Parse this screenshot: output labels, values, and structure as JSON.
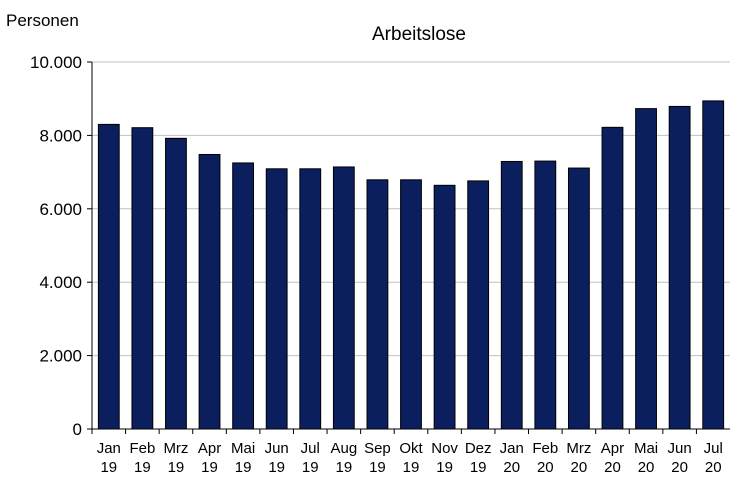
{
  "chart_data": {
    "type": "bar",
    "title": "Arbeitslose",
    "ylabel": "Personen",
    "xlabel": "",
    "ylim": [
      0,
      10000
    ],
    "yticks": [
      {
        "value": 0,
        "label": "0"
      },
      {
        "value": 2000,
        "label": "2.000"
      },
      {
        "value": 4000,
        "label": "4.000"
      },
      {
        "value": 6000,
        "label": "6.000"
      },
      {
        "value": 8000,
        "label": "8.000"
      },
      {
        "value": 10000,
        "label": "10.000"
      }
    ],
    "grid": true,
    "legend": "none",
    "bar_color": "#0b1f5e",
    "categories": [
      {
        "month": "Jan",
        "year": "19"
      },
      {
        "month": "Feb",
        "year": "19"
      },
      {
        "month": "Mrz",
        "year": "19"
      },
      {
        "month": "Apr",
        "year": "19"
      },
      {
        "month": "Mai",
        "year": "19"
      },
      {
        "month": "Jun",
        "year": "19"
      },
      {
        "month": "Jul",
        "year": "19"
      },
      {
        "month": "Aug",
        "year": "19"
      },
      {
        "month": "Sep",
        "year": "19"
      },
      {
        "month": "Okt",
        "year": "19"
      },
      {
        "month": "Nov",
        "year": "19"
      },
      {
        "month": "Dez",
        "year": "19"
      },
      {
        "month": "Jan",
        "year": "20"
      },
      {
        "month": "Feb",
        "year": "20"
      },
      {
        "month": "Mrz",
        "year": "20"
      },
      {
        "month": "Apr",
        "year": "20"
      },
      {
        "month": "Mai",
        "year": "20"
      },
      {
        "month": "Jun",
        "year": "20"
      },
      {
        "month": "Jul",
        "year": "20"
      }
    ],
    "values": [
      8300,
      8210,
      7920,
      7480,
      7250,
      7090,
      7090,
      7140,
      6790,
      6790,
      6640,
      6760,
      7290,
      7300,
      7110,
      8220,
      8730,
      8790,
      8940
    ]
  }
}
